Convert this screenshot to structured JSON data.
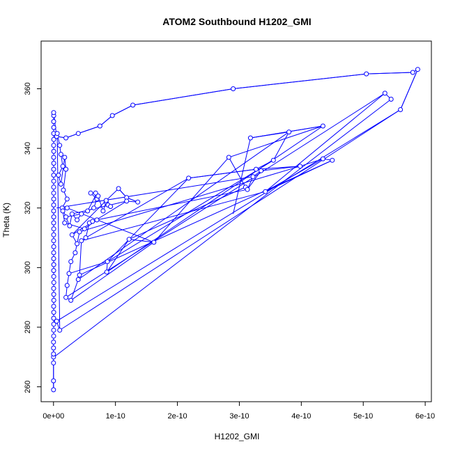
{
  "chart_data": {
    "type": "scatter",
    "title": "ATOM2 Southbound H1202_GMI",
    "xlabel": "H1202_GMI",
    "ylabel": "Theta (K)",
    "xlim": [
      -2e-11,
      6.1e-10
    ],
    "ylim": [
      255,
      376
    ],
    "xticks": [
      0,
      1e-10,
      2e-10,
      3e-10,
      4e-10,
      5e-10,
      6e-10
    ],
    "xtick_labels": [
      "0e+00",
      "1e-10",
      "2e-10",
      "3e-10",
      "4e-10",
      "5e-10",
      "6e-10"
    ],
    "yticks": [
      260,
      280,
      300,
      320,
      340,
      360
    ],
    "ytick_labels": [
      "260",
      "280",
      "300",
      "320",
      "340",
      "360"
    ],
    "grid": false,
    "legend": "none",
    "series": [
      {
        "color": "#0000ff",
        "marker": "open-circle",
        "line": true,
        "points": [
          [
            0.0,
            259
          ],
          [
            0.0,
            262
          ],
          [
            0.0,
            268
          ],
          [
            0.0,
            270
          ],
          [
            0.0,
            271
          ],
          [
            0.0,
            273
          ],
          [
            0.0,
            275
          ],
          [
            2e-13,
            277
          ],
          [
            3e-13,
            279
          ],
          [
            4e-13,
            281
          ],
          [
            3e-13,
            283
          ],
          [
            4e-13,
            285
          ],
          [
            2e-13,
            287
          ],
          [
            5e-13,
            289
          ],
          [
            4e-13,
            291
          ],
          [
            3e-13,
            293
          ],
          [
            5e-13,
            295
          ],
          [
            4e-13,
            297
          ],
          [
            3e-13,
            299
          ],
          [
            4e-13,
            301
          ],
          [
            2e-13,
            303
          ],
          [
            3e-13,
            305
          ],
          [
            4e-13,
            307
          ],
          [
            3e-13,
            309
          ],
          [
            2e-13,
            311
          ],
          [
            4e-13,
            313
          ],
          [
            3e-13,
            315
          ],
          [
            4e-13,
            317
          ],
          [
            2e-13,
            319
          ],
          [
            3e-13,
            321
          ],
          [
            4e-13,
            323
          ],
          [
            2e-13,
            325
          ],
          [
            3e-13,
            327
          ],
          [
            4e-13,
            329
          ],
          [
            3e-13,
            331
          ],
          [
            2e-13,
            333
          ],
          [
            4e-13,
            335
          ],
          [
            3e-13,
            337
          ],
          [
            4e-13,
            339
          ],
          [
            3e-13,
            341
          ],
          [
            4e-13,
            343
          ],
          [
            3e-13,
            345
          ],
          [
            4e-13,
            347
          ],
          [
            3e-13,
            349
          ],
          [
            4e-13,
            351
          ],
          [
            3e-13,
            352
          ],
          [
            5e-12,
            344
          ],
          [
            2e-11,
            343.5
          ],
          [
            4e-11,
            345
          ],
          [
            7.5e-11,
            347.5
          ],
          [
            9.5e-11,
            351
          ],
          [
            1.28e-10,
            354.5
          ],
          [
            2.9e-10,
            360
          ],
          [
            5.05e-10,
            365
          ],
          [
            5.8e-10,
            365.5
          ],
          [
            5.88e-10,
            366.5
          ],
          [
            5.6e-10,
            353
          ],
          [
            5e-12,
            282
          ],
          [
            1e-11,
            279
          ],
          [
            6e-12,
            345
          ],
          [
            1e-11,
            341
          ],
          [
            1.2e-11,
            338
          ],
          [
            1.5e-11,
            334
          ],
          [
            8e-12,
            331
          ],
          [
            1.2e-11,
            328
          ],
          [
            1.8e-11,
            337
          ],
          [
            2e-11,
            333
          ],
          [
            1.6e-11,
            326
          ],
          [
            2.2e-11,
            323
          ],
          [
            1.4e-11,
            320
          ],
          [
            2e-11,
            317
          ],
          [
            2.6e-11,
            314
          ],
          [
            3e-11,
            318
          ],
          [
            3.8e-11,
            316
          ],
          [
            4.5e-11,
            318
          ],
          [
            5.5e-11,
            319
          ],
          [
            6.5e-11,
            320
          ],
          [
            7e-11,
            323
          ],
          [
            6e-11,
            325
          ],
          [
            6.8e-11,
            325
          ],
          [
            7.2e-11,
            324
          ],
          [
            8e-11,
            319
          ],
          [
            8.5e-11,
            322
          ],
          [
            8.8e-11,
            321
          ],
          [
            9.2e-11,
            320.5
          ],
          [
            8.5e-11,
            322.5
          ],
          [
            1.05e-10,
            326.5
          ],
          [
            1.18e-10,
            323.5
          ],
          [
            1.36e-10,
            322
          ],
          [
            1.18e-10,
            322.3
          ],
          [
            3e-11,
            311
          ],
          [
            3.8e-11,
            308
          ],
          [
            4.2e-11,
            312
          ],
          [
            3.5e-11,
            305
          ],
          [
            2.8e-11,
            302
          ],
          [
            2.5e-11,
            298
          ],
          [
            2.2e-11,
            294
          ],
          [
            2e-11,
            290
          ],
          [
            2.8e-11,
            289
          ],
          [
            4e-11,
            296
          ],
          [
            4.2e-11,
            297.5
          ],
          [
            4.5e-11,
            309
          ],
          [
            5.2e-11,
            310
          ],
          [
            5.8e-11,
            315
          ],
          [
            6.3e-11,
            315.5
          ],
          [
            7e-11,
            316
          ],
          [
            5e-11,
            313
          ],
          [
            1.8e-11,
            315
          ],
          [
            1.5e-11,
            319
          ],
          [
            2.2e-11,
            320
          ],
          [
            1.62e-10,
            308.5
          ],
          [
            1.22e-10,
            309.5
          ],
          [
            8.6e-11,
            298.5
          ],
          [
            8.7e-11,
            302
          ],
          [
            2.18e-10,
            330
          ],
          [
            3.27e-10,
            333
          ],
          [
            3.55e-10,
            336
          ],
          [
            3.8e-10,
            345.5
          ],
          [
            3.18e-10,
            343.5
          ],
          [
            4.35e-10,
            347.5
          ],
          [
            2.83e-10,
            337
          ],
          [
            3.1e-10,
            327
          ],
          [
            3.13e-10,
            326.2
          ],
          [
            3.22e-10,
            330.5
          ],
          [
            3.35e-10,
            332.5
          ],
          [
            3.98e-10,
            334
          ],
          [
            4.35e-10,
            336.5
          ],
          [
            4.5e-10,
            336
          ],
          [
            3.42e-10,
            325.5
          ],
          [
            5.35e-10,
            358.5
          ],
          [
            5.45e-10,
            356.5
          ]
        ]
      }
    ],
    "segments": [
      [
        [
          0.0,
          259
        ],
        [
          0.0,
          262
        ]
      ],
      [
        [
          0.0,
          262
        ],
        [
          0.0,
          268
        ]
      ],
      [
        [
          6e-12,
          344
        ],
        [
          2e-11,
          343.5
        ]
      ],
      [
        [
          2e-11,
          343.5
        ],
        [
          4e-11,
          345
        ]
      ],
      [
        [
          4e-11,
          345
        ],
        [
          7.5e-11,
          347.5
        ]
      ],
      [
        [
          7.5e-11,
          347.5
        ],
        [
          9.5e-11,
          351
        ]
      ],
      [
        [
          9.5e-11,
          351
        ],
        [
          1.28e-10,
          354.5
        ]
      ],
      [
        [
          1.28e-10,
          354.5
        ],
        [
          2.9e-10,
          360
        ]
      ],
      [
        [
          2.9e-10,
          360
        ],
        [
          5.05e-10,
          365
        ]
      ],
      [
        [
          5.05e-10,
          365
        ],
        [
          5.8e-10,
          365.5
        ]
      ],
      [
        [
          5.8e-10,
          365.5
        ],
        [
          5.88e-10,
          366.5
        ]
      ],
      [
        [
          5.88e-10,
          366.5
        ],
        [
          5.6e-10,
          353
        ]
      ],
      [
        [
          5.6e-10,
          353
        ],
        [
          1e-11,
          279
        ]
      ],
      [
        [
          1e-12,
          270
        ],
        [
          5.45e-10,
          356.5
        ]
      ],
      [
        [
          5.35e-10,
          358.5
        ],
        [
          2e-11,
          290
        ]
      ],
      [
        [
          4e-11,
          296
        ],
        [
          3.8e-10,
          345.5
        ]
      ],
      [
        [
          8.6e-11,
          298.5
        ],
        [
          4.35e-10,
          347.5
        ]
      ],
      [
        [
          8.7e-11,
          302
        ],
        [
          3.55e-10,
          336
        ]
      ],
      [
        [
          2.8e-11,
          289
        ],
        [
          1.62e-10,
          308.5
        ]
      ],
      [
        [
          1.62e-10,
          308.5
        ],
        [
          2.83e-10,
          337
        ]
      ],
      [
        [
          1.22e-10,
          309.5
        ],
        [
          3.1e-10,
          327
        ]
      ],
      [
        [
          4.5e-11,
          309
        ],
        [
          3.42e-10,
          325.5
        ]
      ],
      [
        [
          3.42e-10,
          325.5
        ],
        [
          4.35e-10,
          336.5
        ]
      ],
      [
        [
          4.2e-11,
          312
        ],
        [
          3.98e-10,
          334
        ]
      ],
      [
        [
          3.98e-10,
          334
        ],
        [
          3.27e-10,
          333
        ]
      ],
      [
        [
          3.27e-10,
          333
        ],
        [
          2.18e-10,
          330
        ]
      ],
      [
        [
          2.18e-10,
          330
        ],
        [
          5.2e-11,
          310
        ]
      ],
      [
        [
          3.18e-10,
          343.5
        ],
        [
          4.35e-10,
          347.5
        ]
      ],
      [
        [
          3.18e-10,
          343.5
        ],
        [
          2.9e-10,
          318
        ]
      ],
      [
        [
          4.5e-10,
          336
        ],
        [
          4.2e-11,
          297.5
        ]
      ],
      [
        [
          3.35e-10,
          332.5
        ],
        [
          3.13e-10,
          326.2
        ]
      ],
      [
        [
          3.13e-10,
          326.2
        ],
        [
          7e-11,
          316
        ]
      ],
      [
        [
          3.22e-10,
          330.5
        ],
        [
          5e-12,
          320
        ]
      ],
      [
        [
          1.05e-10,
          326.5
        ],
        [
          1.18e-10,
          323.5
        ]
      ],
      [
        [
          1.18e-10,
          323.5
        ],
        [
          1.36e-10,
          322
        ]
      ],
      [
        [
          3e-11,
          318
        ],
        [
          1.18e-10,
          322.3
        ]
      ],
      [
        [
          8.5e-11,
          322.5
        ],
        [
          3e-11,
          311
        ]
      ],
      [
        [
          5.5e-11,
          319
        ],
        [
          7e-11,
          325
        ]
      ],
      [
        [
          2.5e-11,
          298
        ],
        [
          8.7e-11,
          302
        ]
      ],
      [
        [
          2e-11,
          317
        ],
        [
          4.5e-11,
          318
        ]
      ]
    ]
  }
}
